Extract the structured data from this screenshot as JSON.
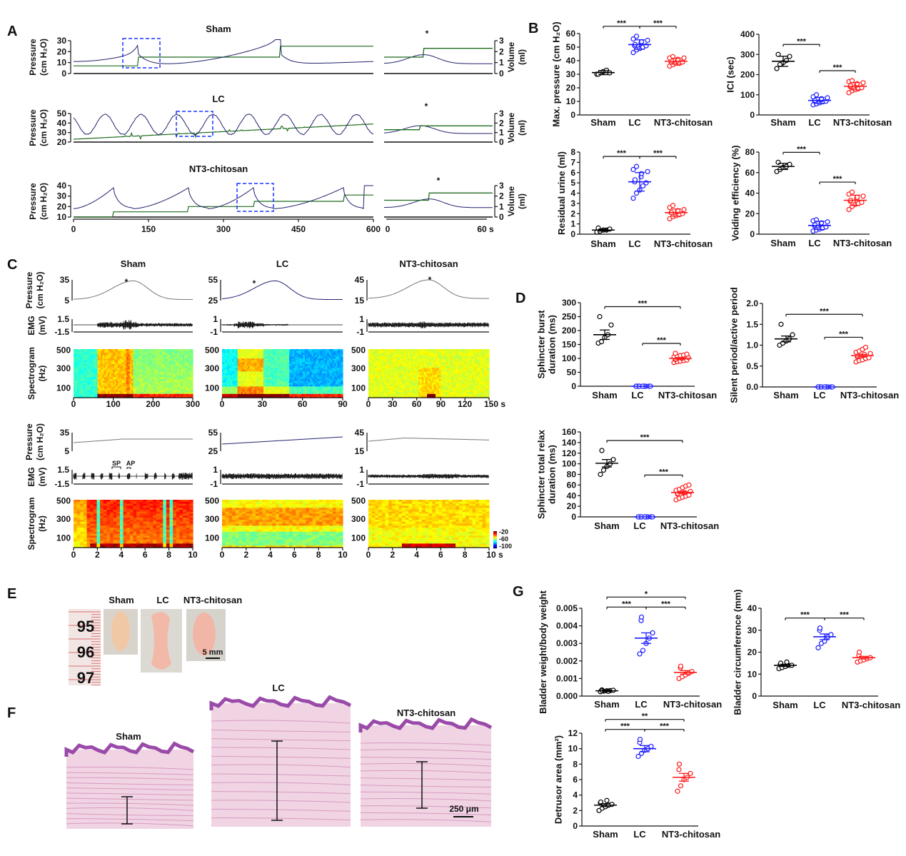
{
  "panel_labels": {
    "a": "A",
    "b": "B",
    "c": "C",
    "d": "D",
    "e": "E",
    "f": "F",
    "g": "G"
  },
  "groups": [
    "Sham",
    "LC",
    "NT3-chitosan"
  ],
  "colors": {
    "sham": "#000000",
    "lc": "#1a1aff",
    "nt3": "#ff1a1a",
    "pressure": "#22226e",
    "volume": "#1e6b1e",
    "volume_pre": "#c8d6c8",
    "zoom_box": "#1a33ff"
  },
  "panel_a": {
    "pressure_label": "Pressure",
    "pressure_unit": "(cm H₂O)",
    "volume_label": "Volume",
    "volume_unit": "(ml)",
    "peak_marker": "*",
    "rows": [
      {
        "title": "Sham",
        "yticks": [
          "0",
          "10",
          "20",
          "30"
        ]
      },
      {
        "title": "LC",
        "yticks": [
          "20",
          "30",
          "40",
          "50"
        ]
      },
      {
        "title": "NT3-chitosan",
        "yticks": [
          "10",
          "20",
          "30",
          "40"
        ]
      }
    ],
    "volume_ticks": [
      "0",
      "1",
      "2",
      "3"
    ],
    "xticks": [
      "0",
      "150",
      "300",
      "450",
      "600"
    ],
    "inset_xticks": [
      "0",
      "60 s"
    ]
  },
  "panel_c": {
    "pressure_label": "Pressure",
    "pressure_unit": "(cm H₂O)",
    "emg_label": "EMG",
    "emg_unit": "(mV)",
    "spec_label": "Spectrogram",
    "spec_unit": "(Hz)",
    "spec_ticks": [
      "500",
      "300",
      "100"
    ],
    "peak_marker": "*",
    "sp_label": "SP",
    "ap_label": "AP",
    "columns": [
      {
        "title": "Sham",
        "pressure_ticks": [
          "35",
          "5"
        ],
        "emg_ticks": [
          "1.5",
          "-1.5"
        ],
        "xticks_top": [
          "0",
          "100",
          "200",
          "300"
        ],
        "xticks_bottom": [
          "0",
          "2",
          "4",
          "6",
          "8",
          "10"
        ]
      },
      {
        "title": "LC",
        "pressure_ticks": [
          "55",
          "25"
        ],
        "emg_ticks": [
          "1",
          "-1"
        ],
        "xticks_top": [
          "0",
          "30",
          "60",
          "90"
        ],
        "xticks_bottom": [
          "0",
          "2",
          "4",
          "6",
          "8",
          "10"
        ]
      },
      {
        "title": "NT3-chitosan",
        "pressure_ticks": [
          "45",
          "15"
        ],
        "emg_ticks": [
          "1",
          "-1"
        ],
        "xticks_top": [
          "0",
          "30",
          "60",
          "90",
          "120",
          "150 s"
        ],
        "xticks_bottom": [
          "0",
          "2",
          "4",
          "6",
          "8",
          "10 s"
        ]
      }
    ],
    "colorbar_ticks": [
      "-20",
      "-60",
      "-100"
    ]
  },
  "panel_e": {
    "labels": [
      "Sham",
      "LC",
      "NT3-chitosan"
    ],
    "ruler": [
      "95",
      "96",
      "97"
    ],
    "scale": "5 mm"
  },
  "panel_f": {
    "labels": [
      "Sham",
      "LC",
      "NT3-chitosan"
    ],
    "scale": "250 μm"
  },
  "chart_data": [
    {
      "id": "b1",
      "panel": "B",
      "type": "scatter",
      "ylabel": [
        "Max. pressure (cm H₂O)"
      ],
      "ylim": [
        0,
        60
      ],
      "yticks": [
        "0",
        "10",
        "20",
        "30",
        "40",
        "50",
        "60"
      ],
      "categories": [
        "Sham",
        "LC",
        "NT3-chitosan"
      ],
      "series": [
        {
          "name": "Sham",
          "values": [
            30,
            31,
            32,
            33,
            31,
            30
          ],
          "mean": 31.2,
          "err": 1.5
        },
        {
          "name": "LC",
          "values": [
            46,
            48,
            49,
            50,
            51,
            51,
            52,
            53,
            54,
            55,
            56,
            58
          ],
          "mean": 51.9,
          "err": 3.5
        },
        {
          "name": "NT3-chitosan",
          "values": [
            36,
            37,
            38,
            38,
            39,
            39,
            40,
            40,
            41,
            42,
            42,
            43
          ],
          "mean": 39.6,
          "err": 2.2
        }
      ],
      "significance": [
        {
          "from": 0,
          "to": 1,
          "label": "***"
        },
        {
          "from": 1,
          "to": 2,
          "label": "***"
        }
      ]
    },
    {
      "id": "b2",
      "panel": "B",
      "type": "scatter",
      "ylabel": [
        "ICI (sec)"
      ],
      "ylim": [
        0,
        400
      ],
      "yticks": [
        "0",
        "100",
        "200",
        "300",
        "400"
      ],
      "categories": [
        "Sham",
        "LC",
        "NT3-chitosan"
      ],
      "series": [
        {
          "name": "Sham",
          "values": [
            230,
            250,
            260,
            270,
            290,
            300
          ],
          "mean": 266,
          "err": 25
        },
        {
          "name": "LC",
          "values": [
            50,
            55,
            60,
            65,
            68,
            70,
            72,
            75,
            80,
            85,
            90,
            100
          ],
          "mean": 72,
          "err": 15
        },
        {
          "name": "NT3-chitosan",
          "values": [
            110,
            120,
            125,
            130,
            135,
            140,
            145,
            150,
            155,
            160,
            165,
            170
          ],
          "mean": 142,
          "err": 18
        }
      ],
      "significance": [
        {
          "from": 0,
          "to": 1,
          "label": "***"
        },
        {
          "from": 1,
          "to": 2,
          "label": "***"
        }
      ]
    },
    {
      "id": "b3",
      "panel": "B",
      "type": "scatter",
      "ylabel": [
        "Residual urine (ml)"
      ],
      "ylim": [
        0,
        8
      ],
      "yticks": [
        "0",
        "1",
        "2",
        "3",
        "4",
        "5",
        "6",
        "7",
        "8"
      ],
      "categories": [
        "Sham",
        "LC",
        "NT3-chitosan"
      ],
      "series": [
        {
          "name": "Sham",
          "values": [
            0.2,
            0.3,
            0.4,
            0.4,
            0.5,
            0.6
          ],
          "mean": 0.4,
          "err": 0.1
        },
        {
          "name": "LC",
          "values": [
            3.5,
            4,
            4.3,
            4.7,
            5,
            5.1,
            5.3,
            5.6,
            5.9,
            6.1,
            6.3,
            6.6
          ],
          "mean": 5.1,
          "err": 0.9
        },
        {
          "name": "NT3-chitosan",
          "values": [
            1.5,
            1.7,
            1.8,
            1.9,
            2,
            2.1,
            2.1,
            2.2,
            2.3,
            2.4,
            2.6,
            2.8
          ],
          "mean": 2.1,
          "err": 0.35
        }
      ],
      "significance": [
        {
          "from": 0,
          "to": 1,
          "label": "***"
        },
        {
          "from": 1,
          "to": 2,
          "label": "***"
        }
      ]
    },
    {
      "id": "b4",
      "panel": "B",
      "type": "scatter",
      "ylabel": [
        "Voiding efficiency (%)"
      ],
      "ylim": [
        0,
        80
      ],
      "yticks": [
        "0",
        "20",
        "40",
        "60",
        "80"
      ],
      "categories": [
        "Sham",
        "LC",
        "NT3-chitosan"
      ],
      "series": [
        {
          "name": "Sham",
          "values": [
            61,
            63,
            65,
            66,
            68,
            70
          ],
          "mean": 66,
          "err": 3
        },
        {
          "name": "LC",
          "values": [
            3,
            4,
            5,
            6,
            7,
            8,
            9,
            10,
            11,
            12,
            13,
            14
          ],
          "mean": 8.5,
          "err": 4
        },
        {
          "name": "NT3-chitosan",
          "values": [
            24,
            27,
            29,
            30,
            31,
            32,
            33,
            35,
            36,
            37,
            39,
            41
          ],
          "mean": 33,
          "err": 5
        }
      ],
      "significance": [
        {
          "from": 0,
          "to": 1,
          "label": "***"
        },
        {
          "from": 1,
          "to": 2,
          "label": "***"
        }
      ]
    },
    {
      "id": "d1",
      "panel": "D",
      "type": "scatter",
      "ylabel": [
        "Sphincter burst",
        "duration (ms)"
      ],
      "ylim": [
        0,
        300
      ],
      "yticks": [
        "0",
        "50",
        "100",
        "150",
        "200",
        "250",
        "300"
      ],
      "categories": [
        "Sham",
        "LC",
        "NT3-chitosan"
      ],
      "series": [
        {
          "name": "Sham",
          "values": [
            155,
            160,
            175,
            185,
            220,
            250
          ],
          "mean": 185,
          "err": 17
        },
        {
          "name": "LC",
          "values": [
            0,
            0,
            0,
            0,
            0,
            0,
            0,
            0,
            0,
            0,
            0,
            0,
            0
          ],
          "mean": 0,
          "err": 0
        },
        {
          "name": "NT3-chitosan",
          "values": [
            85,
            88,
            90,
            92,
            94,
            96,
            98,
            100,
            101,
            103,
            105,
            107,
            110,
            112,
            115,
            118
          ],
          "mean": 100,
          "err": 3
        }
      ],
      "significance": [
        {
          "from": 1,
          "to": 2,
          "label": "***"
        },
        {
          "from": 0,
          "to": 2,
          "label": "***"
        }
      ]
    },
    {
      "id": "d2",
      "panel": "D",
      "type": "scatter",
      "ylabel": [
        "Silent period/active period"
      ],
      "ylim": [
        0,
        2
      ],
      "yticks": [
        "0.0",
        "0.5",
        "1.0",
        "1.5",
        "2.0"
      ],
      "categories": [
        "Sham",
        "LC",
        "NT3-chitosan"
      ],
      "series": [
        {
          "name": "Sham",
          "values": [
            1.0,
            1.05,
            1.1,
            1.15,
            1.25,
            1.5
          ],
          "mean": 1.15,
          "err": 0.07
        },
        {
          "name": "LC",
          "values": [
            0,
            0,
            0,
            0,
            0,
            0,
            0,
            0,
            0,
            0,
            0,
            0,
            0
          ],
          "mean": 0,
          "err": 0
        },
        {
          "name": "NT3-chitosan",
          "values": [
            0.6,
            0.63,
            0.65,
            0.68,
            0.7,
            0.72,
            0.74,
            0.76,
            0.78,
            0.8,
            0.83,
            0.86,
            0.9,
            0.95
          ],
          "mean": 0.75,
          "err": 0.03
        }
      ],
      "significance": [
        {
          "from": 1,
          "to": 2,
          "label": "***"
        },
        {
          "from": 0,
          "to": 2,
          "label": "***"
        }
      ]
    },
    {
      "id": "d3",
      "panel": "D",
      "type": "scatter",
      "ylabel": [
        "Sphincter total relax",
        "duration (ms)"
      ],
      "ylim": [
        0,
        160
      ],
      "yticks": [
        "0",
        "20",
        "40",
        "60",
        "80",
        "100",
        "120",
        "140",
        "160"
      ],
      "categories": [
        "Sham",
        "LC",
        "NT3-chitosan"
      ],
      "series": [
        {
          "name": "Sham",
          "values": [
            80,
            88,
            95,
            100,
            108,
            125
          ],
          "mean": 101,
          "err": 7
        },
        {
          "name": "LC",
          "values": [
            0,
            0,
            0,
            0,
            0,
            0,
            0,
            0,
            0,
            0,
            0,
            0,
            0
          ],
          "mean": 0,
          "err": 0
        },
        {
          "name": "NT3-chitosan",
          "values": [
            32,
            35,
            37,
            39,
            41,
            43,
            44,
            45,
            46,
            48,
            50,
            52,
            55,
            58,
            60
          ],
          "mean": 46,
          "err": 2
        }
      ],
      "significance": [
        {
          "from": 1,
          "to": 2,
          "label": "***"
        },
        {
          "from": 0,
          "to": 2,
          "label": "***"
        }
      ]
    },
    {
      "id": "g1",
      "panel": "G",
      "type": "scatter",
      "ylabel": [
        "Bladder weight/body weight"
      ],
      "ylim": [
        0,
        0.005
      ],
      "yticks": [
        "0.000",
        "0.001",
        "0.002",
        "0.003",
        "0.004",
        "0.005"
      ],
      "categories": [
        "Sham",
        "LC",
        "NT3-chitosan"
      ],
      "series": [
        {
          "name": "Sham",
          "values": [
            0.00025,
            0.00028,
            0.0003,
            0.00031,
            0.00033,
            0.00035,
            0.0003,
            0.00027
          ],
          "mean": 0.0003,
          "err": 5e-05
        },
        {
          "name": "LC",
          "values": [
            0.0024,
            0.0026,
            0.003,
            0.0033,
            0.0036,
            0.0043,
            0.0045
          ],
          "mean": 0.0033,
          "err": 0.0003
        },
        {
          "name": "NT3-chitosan",
          "values": [
            0.001,
            0.0011,
            0.0012,
            0.0013,
            0.0014,
            0.0016,
            0.0017
          ],
          "mean": 0.00135,
          "err": 0.0001
        }
      ],
      "significance": [
        {
          "from": 0,
          "to": 1,
          "label": "***"
        },
        {
          "from": 1,
          "to": 2,
          "label": "***"
        },
        {
          "from": 0,
          "to": 2,
          "label": "*"
        }
      ]
    },
    {
      "id": "g2",
      "panel": "G",
      "type": "scatter",
      "ylabel": [
        "Bladder circumference (mm)"
      ],
      "ylim": [
        0,
        40
      ],
      "yticks": [
        "0",
        "10",
        "20",
        "30",
        "40"
      ],
      "categories": [
        "Sham",
        "LC",
        "NT3-chitosan"
      ],
      "series": [
        {
          "name": "Sham",
          "values": [
            12.5,
            13,
            13.5,
            14,
            14,
            14.5,
            15,
            15.5
          ],
          "mean": 14,
          "err": 0.5
        },
        {
          "name": "LC",
          "values": [
            22,
            24,
            25,
            27,
            28,
            30,
            31
          ],
          "mean": 27,
          "err": 1.3
        },
        {
          "name": "NT3-chitosan",
          "values": [
            15.5,
            16,
            16.5,
            17,
            17.5,
            18.5,
            20
          ],
          "mean": 17.5,
          "err": 0.6
        }
      ],
      "significance": [
        {
          "from": 0,
          "to": 1,
          "label": "***"
        },
        {
          "from": 1,
          "to": 2,
          "label": "***"
        }
      ]
    },
    {
      "id": "g3",
      "panel": "G",
      "type": "scatter",
      "ylabel": [
        "Detrusor area (mm²)"
      ],
      "ylim": [
        0,
        12
      ],
      "yticks": [
        "0",
        "2",
        "4",
        "6",
        "8",
        "10",
        "12"
      ],
      "categories": [
        "Sham",
        "LC",
        "NT3-chitosan"
      ],
      "series": [
        {
          "name": "Sham",
          "values": [
            2.0,
            2.3,
            2.5,
            2.7,
            2.8,
            3.0,
            3.1,
            3.3
          ],
          "mean": 2.7,
          "err": 0.2
        },
        {
          "name": "LC",
          "values": [
            9,
            9.4,
            9.8,
            10,
            10.3,
            10.8,
            11.2
          ],
          "mean": 10,
          "err": 0.4
        },
        {
          "name": "NT3-chitosan",
          "values": [
            4.5,
            5.2,
            6,
            6.3,
            6.8,
            7.3,
            8
          ],
          "mean": 6.3,
          "err": 0.5
        }
      ],
      "significance": [
        {
          "from": 0,
          "to": 1,
          "label": "***"
        },
        {
          "from": 1,
          "to": 2,
          "label": "***"
        },
        {
          "from": 0,
          "to": 2,
          "label": "**"
        }
      ]
    }
  ]
}
